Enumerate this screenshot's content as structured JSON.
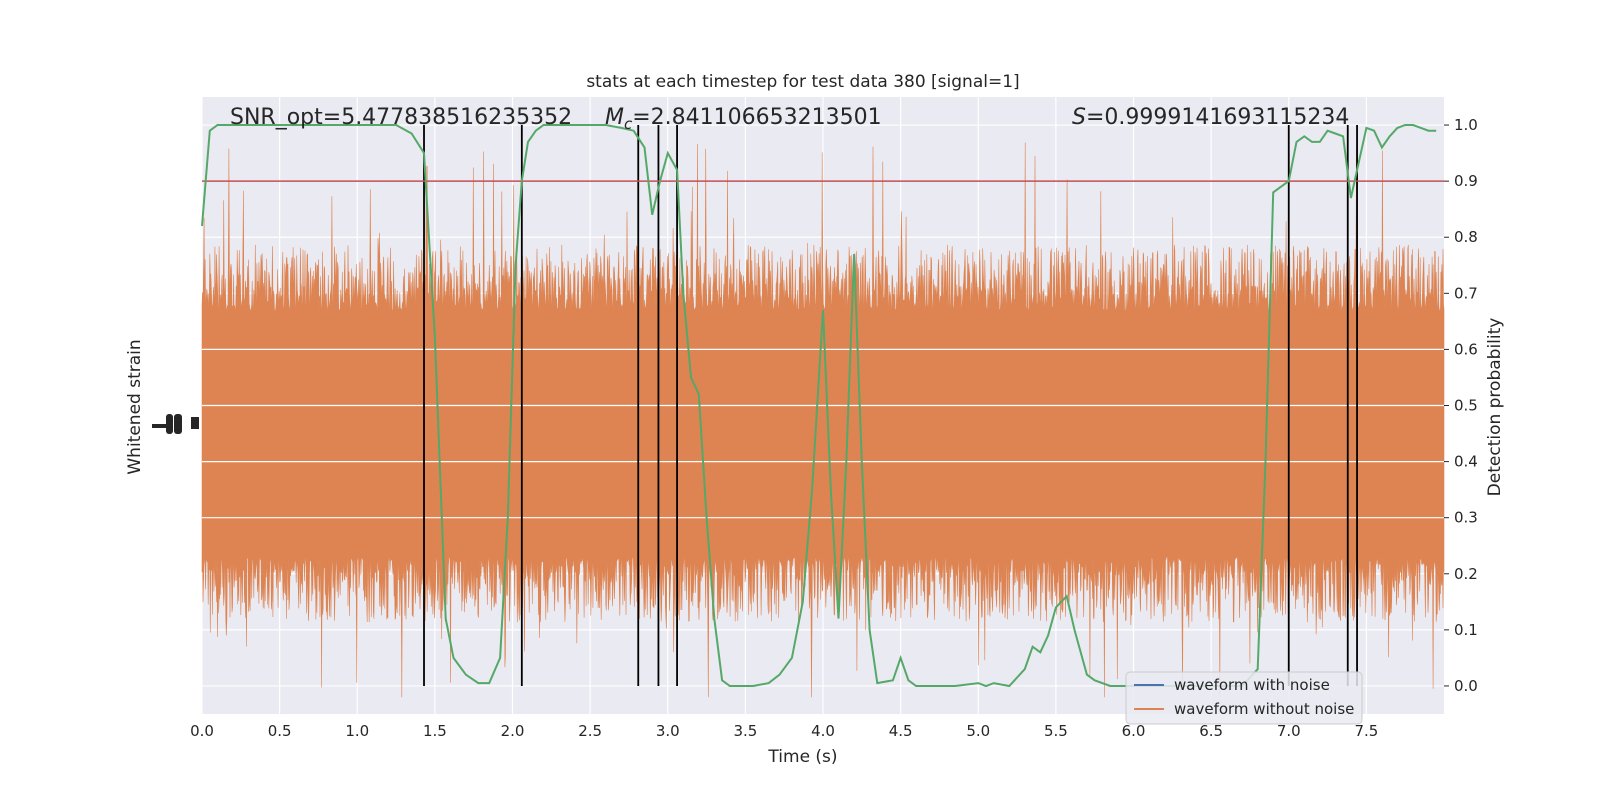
{
  "chart_data": {
    "type": "line",
    "title": "stats at each timestep for test data 380 [signal=1]",
    "xlabel": "Time (s)",
    "ylabel_left": "Whitened strain",
    "ylabel_right": "Detection probability",
    "xlim": [
      0.0,
      8.0
    ],
    "ylim_right": [
      -0.05,
      1.05
    ],
    "x_ticks": [
      "0.0",
      "0.5",
      "1.0",
      "1.5",
      "2.0",
      "2.5",
      "3.0",
      "3.5",
      "4.0",
      "4.5",
      "5.0",
      "5.5",
      "6.0",
      "6.5",
      "7.0",
      "7.5"
    ],
    "y_ticks_right": [
      "0.0",
      "0.1",
      "0.2",
      "0.3",
      "0.4",
      "0.5",
      "0.6",
      "0.7",
      "0.8",
      "0.9",
      "1.0"
    ],
    "grid": true,
    "threshold": {
      "value": 0.9,
      "color": "#c44e52"
    },
    "annotations": {
      "snr": "SNR_opt=5.477838516235352",
      "mc_symbol": "M",
      "mc_sub": "c",
      "mc_value": "=2.841106653213501",
      "s_symbol": "S",
      "s_value": "=0.9999141693115234"
    },
    "detection_boundaries_s": [
      1.43,
      2.06,
      2.81,
      2.94,
      3.06,
      7.0,
      7.38,
      7.44
    ],
    "series": [
      {
        "name": "waveform with noise",
        "color": "#4c72b0"
      },
      {
        "name": "waveform without noise",
        "color": "#dd8452"
      },
      {
        "color": "#55a868",
        "x": [
          0.0,
          0.05,
          0.1,
          0.2,
          0.3,
          0.5,
          0.7,
          0.9,
          1.1,
          1.25,
          1.35,
          1.43,
          1.5,
          1.57,
          1.62,
          1.7,
          1.78,
          1.85,
          1.92,
          1.97,
          2.02,
          2.06,
          2.1,
          2.15,
          2.2,
          2.3,
          2.45,
          2.6,
          2.7,
          2.78,
          2.85,
          2.9,
          2.95,
          3.0,
          3.06,
          3.1,
          3.15,
          3.2,
          3.25,
          3.3,
          3.35,
          3.4,
          3.45,
          3.55,
          3.65,
          3.72,
          3.8,
          3.87,
          3.93,
          4.0,
          4.05,
          4.1,
          4.15,
          4.2,
          4.25,
          4.3,
          4.35,
          4.45,
          4.5,
          4.55,
          4.6,
          4.7,
          4.85,
          5.0,
          5.05,
          5.1,
          5.2,
          5.3,
          5.35,
          5.4,
          5.45,
          5.5,
          5.57,
          5.62,
          5.7,
          5.75,
          5.85,
          6.0,
          6.2,
          6.5,
          6.7,
          6.8,
          6.85,
          6.9,
          6.95,
          7.0,
          7.05,
          7.1,
          7.15,
          7.2,
          7.25,
          7.3,
          7.35,
          7.4,
          7.44,
          7.5,
          7.55,
          7.6,
          7.65,
          7.7,
          7.75,
          7.8,
          7.9,
          7.95
        ],
        "y": [
          0.82,
          0.99,
          1.0,
          1.0,
          1.0,
          1.0,
          1.0,
          1.0,
          1.0,
          1.0,
          0.985,
          0.95,
          0.62,
          0.12,
          0.05,
          0.02,
          0.005,
          0.005,
          0.05,
          0.3,
          0.75,
          0.9,
          0.97,
          0.99,
          1.0,
          1.0,
          1.0,
          1.0,
          0.995,
          0.99,
          0.96,
          0.84,
          0.9,
          0.95,
          0.92,
          0.7,
          0.55,
          0.52,
          0.3,
          0.12,
          0.01,
          0.0,
          0.0,
          0.0,
          0.005,
          0.02,
          0.05,
          0.15,
          0.35,
          0.67,
          0.35,
          0.12,
          0.4,
          0.77,
          0.4,
          0.1,
          0.005,
          0.01,
          0.05,
          0.01,
          0.0,
          0.0,
          0.0,
          0.005,
          0.0,
          0.005,
          0.0,
          0.03,
          0.07,
          0.06,
          0.09,
          0.14,
          0.16,
          0.1,
          0.02,
          0.01,
          0.0,
          0.0,
          0.0,
          0.0,
          0.0,
          0.03,
          0.4,
          0.88,
          0.89,
          0.9,
          0.97,
          0.98,
          0.97,
          0.97,
          0.99,
          0.985,
          0.98,
          0.87,
          0.92,
          0.995,
          0.99,
          0.96,
          0.98,
          0.995,
          1.0,
          1.0,
          0.99,
          0.99
        ]
      }
    ],
    "legend_position": "lower right"
  }
}
